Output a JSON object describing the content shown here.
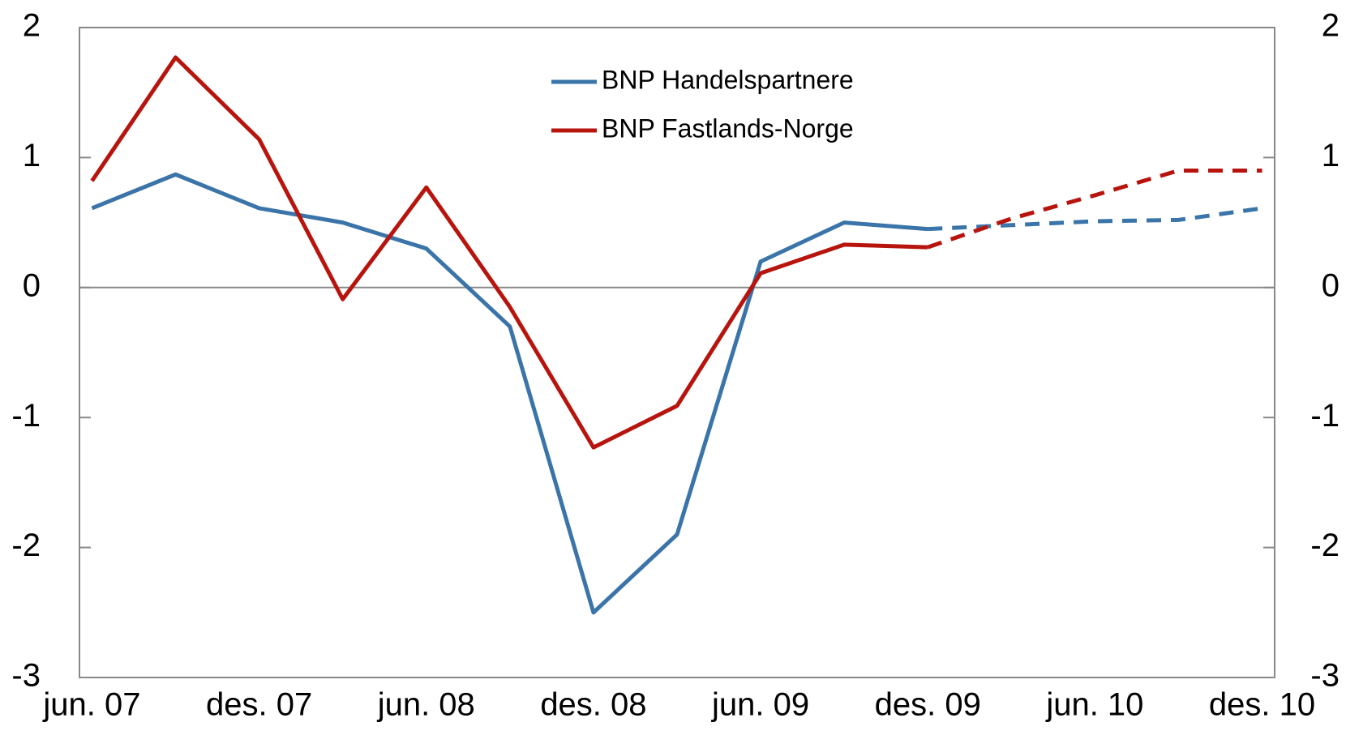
{
  "chart_data": {
    "type": "line",
    "categories": [
      "jun. 07",
      null,
      "des. 07",
      null,
      "jun. 08",
      null,
      "des. 08",
      null,
      "jun. 09",
      null,
      "des. 09",
      null,
      "jun. 10",
      null,
      "des. 10"
    ],
    "series": [
      {
        "name": "BNP Handelspartnere",
        "color": "#3a74a8",
        "values": [
          0.61,
          0.87,
          0.61,
          0.5,
          0.3,
          -0.3,
          -2.5,
          -1.9,
          0.2,
          0.5,
          0.45,
          0.48,
          0.51,
          0.52,
          0.61
        ]
      },
      {
        "name": "BNP Fastlands-Norge",
        "color": "#b8140e",
        "values": [
          0.82,
          1.77,
          1.14,
          -0.09,
          0.77,
          -0.15,
          -1.23,
          -0.91,
          0.11,
          0.33,
          0.31,
          0.53,
          0.71,
          0.9,
          0.9
        ]
      }
    ],
    "dashed_from": 10,
    "ylim": [
      -3,
      2
    ],
    "yticks": [
      -3,
      -2,
      -1,
      0,
      1,
      2
    ],
    "y2lim": [
      -3,
      2
    ],
    "y2ticks": [
      -3,
      -2,
      -1,
      0,
      1,
      2
    ],
    "legend": "top"
  }
}
